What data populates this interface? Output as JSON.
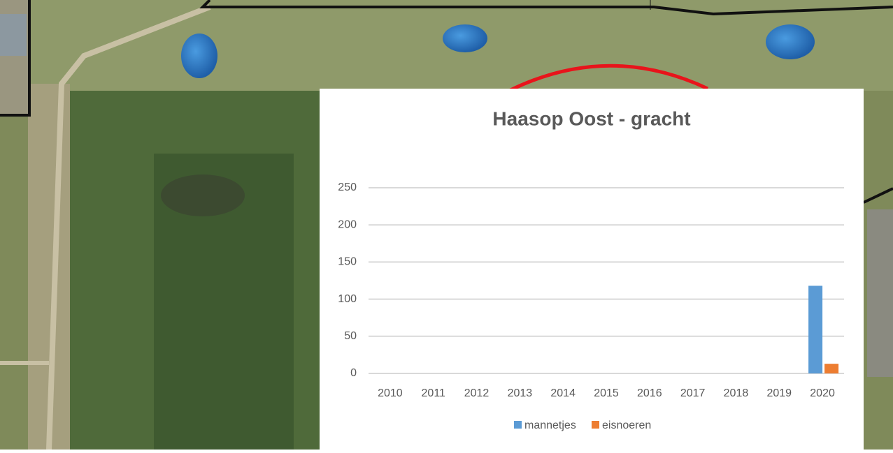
{
  "chart_data": {
    "type": "bar",
    "title": "Haasop Oost - gracht",
    "categories": [
      "2010",
      "2011",
      "2012",
      "2013",
      "2014",
      "2015",
      "2016",
      "2017",
      "2018",
      "2019",
      "2020"
    ],
    "series": [
      {
        "name": "mannetjes",
        "color": "#5b9bd5",
        "values": [
          null,
          null,
          null,
          null,
          null,
          null,
          null,
          null,
          null,
          null,
          118
        ]
      },
      {
        "name": "eisnoeren",
        "color": "#ed7d31",
        "values": [
          null,
          null,
          null,
          null,
          null,
          null,
          null,
          null,
          null,
          null,
          13
        ]
      }
    ],
    "ylim": [
      0,
      250
    ],
    "yticks": [
      0,
      50,
      100,
      150,
      200,
      250
    ],
    "grid": true,
    "legend": "bottom"
  }
}
